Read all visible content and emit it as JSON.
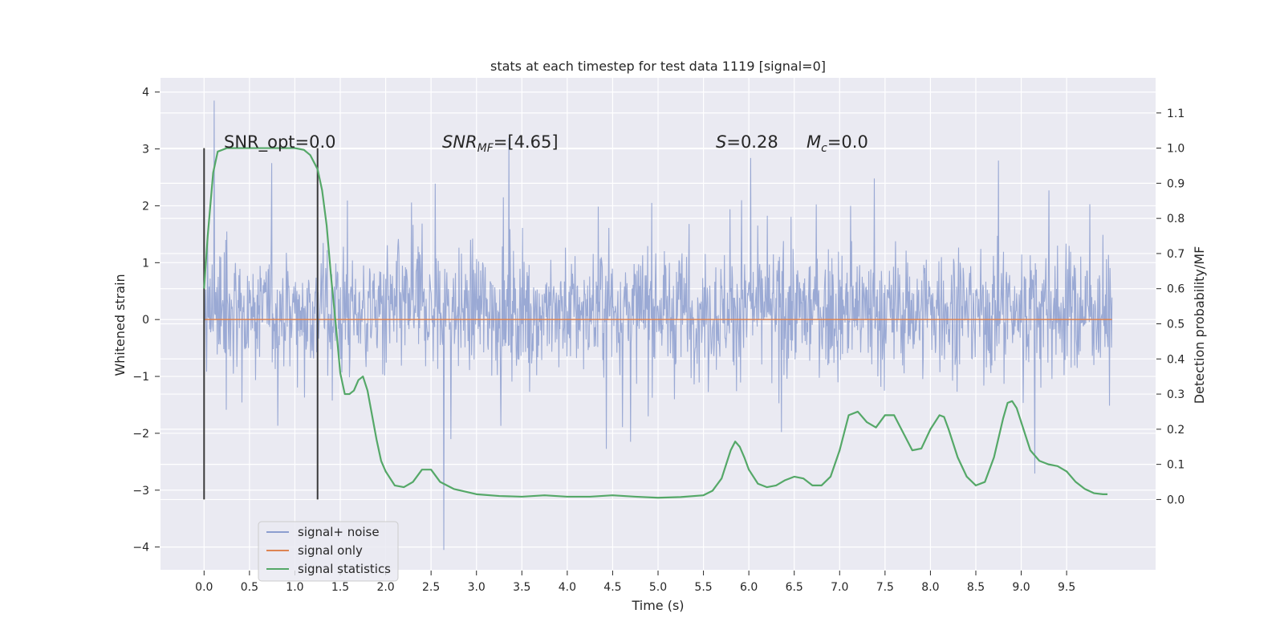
{
  "chart_data": {
    "type": "line",
    "title": "stats at each timestep for test data 1119 [signal=0]",
    "xlabel": "Time (s)",
    "ylabel": "Whitened strain",
    "ylabel_right": "Detection probability/MF",
    "xlim": [
      -0.48,
      10.48
    ],
    "ylim": [
      -4.4,
      4.25
    ],
    "ylim_right": [
      -0.2,
      1.2
    ],
    "x_ticks": [
      "0.0",
      "0.5",
      "1.0",
      "1.5",
      "2.0",
      "2.5",
      "3.0",
      "3.5",
      "4.0",
      "4.5",
      "5.0",
      "5.5",
      "6.0",
      "6.5",
      "7.0",
      "7.5",
      "8.0",
      "8.5",
      "9.0",
      "9.5"
    ],
    "y_ticks": [
      "4",
      "3",
      "2",
      "1",
      "0",
      "−1",
      "−2",
      "−3",
      "−4"
    ],
    "y_ticks_right": [
      "1.1",
      "1.0",
      "0.9",
      "0.8",
      "0.7",
      "0.6",
      "0.5",
      "0.4",
      "0.3",
      "0.2",
      "0.1",
      "0.0"
    ],
    "grid": true,
    "legend_position": "lower-left",
    "annotations": {
      "snr_opt": "SNR_opt=0.0",
      "snr_mf_sym": "SNR",
      "snr_mf_sub": "MF",
      "snr_mf_rest": "=[4.65]",
      "s_sym": "S",
      "s_rest": "=0.28",
      "mc_sym": "M",
      "mc_sub": "c",
      "mc_rest": "=0.0"
    },
    "vertical_markers_x": [
      0.0,
      1.25
    ],
    "colors": {
      "background": "#eaeaf2",
      "grid": "#ffffff",
      "noise": "#8c9ecf",
      "signal": "#dd8452",
      "stats": "#55a868",
      "marker": "#3a3a3a"
    },
    "series": [
      {
        "name": "signal+ noise",
        "axis": "left",
        "style": "dense noise trace",
        "x_range": [
          0.0,
          10.0
        ],
        "envelope_typical": [
          -1.4,
          1.8
        ],
        "max": 3.85,
        "min": -4.05
      },
      {
        "name": "signal only",
        "axis": "left",
        "x": [
          0.0,
          10.0
        ],
        "y": [
          0.0,
          0.0
        ]
      },
      {
        "name": "signal statistics",
        "axis": "right",
        "x": [
          0.0,
          0.04,
          0.1,
          0.15,
          0.25,
          0.5,
          0.75,
          1.0,
          1.1,
          1.17,
          1.25,
          1.3,
          1.35,
          1.4,
          1.45,
          1.5,
          1.55,
          1.6,
          1.65,
          1.7,
          1.75,
          1.8,
          1.85,
          1.9,
          1.95,
          2.0,
          2.1,
          2.2,
          2.3,
          2.4,
          2.5,
          2.6,
          2.75,
          3.0,
          3.25,
          3.5,
          3.75,
          4.0,
          4.25,
          4.5,
          4.75,
          5.0,
          5.25,
          5.5,
          5.6,
          5.7,
          5.8,
          5.85,
          5.9,
          5.95,
          6.0,
          6.1,
          6.2,
          6.3,
          6.4,
          6.5,
          6.6,
          6.7,
          6.8,
          6.9,
          7.0,
          7.1,
          7.2,
          7.3,
          7.4,
          7.5,
          7.6,
          7.7,
          7.8,
          7.9,
          8.0,
          8.1,
          8.15,
          8.2,
          8.3,
          8.4,
          8.5,
          8.6,
          8.7,
          8.8,
          8.85,
          8.9,
          8.95,
          9.0,
          9.1,
          9.2,
          9.3,
          9.4,
          9.5,
          9.6,
          9.7,
          9.8,
          9.9,
          9.95
        ],
        "y": [
          0.6,
          0.75,
          0.93,
          0.99,
          1.0,
          1.0,
          1.0,
          1.0,
          0.995,
          0.98,
          0.94,
          0.88,
          0.78,
          0.63,
          0.5,
          0.36,
          0.3,
          0.3,
          0.31,
          0.34,
          0.35,
          0.31,
          0.24,
          0.17,
          0.11,
          0.08,
          0.04,
          0.035,
          0.05,
          0.085,
          0.085,
          0.05,
          0.03,
          0.015,
          0.01,
          0.008,
          0.012,
          0.008,
          0.008,
          0.012,
          0.008,
          0.005,
          0.007,
          0.012,
          0.025,
          0.06,
          0.14,
          0.165,
          0.15,
          0.12,
          0.085,
          0.045,
          0.035,
          0.04,
          0.055,
          0.065,
          0.06,
          0.04,
          0.04,
          0.065,
          0.14,
          0.24,
          0.25,
          0.22,
          0.205,
          0.24,
          0.24,
          0.19,
          0.14,
          0.145,
          0.2,
          0.24,
          0.235,
          0.2,
          0.12,
          0.065,
          0.04,
          0.05,
          0.12,
          0.23,
          0.275,
          0.28,
          0.26,
          0.22,
          0.14,
          0.11,
          0.1,
          0.095,
          0.08,
          0.05,
          0.03,
          0.018,
          0.015,
          0.015
        ]
      }
    ]
  }
}
